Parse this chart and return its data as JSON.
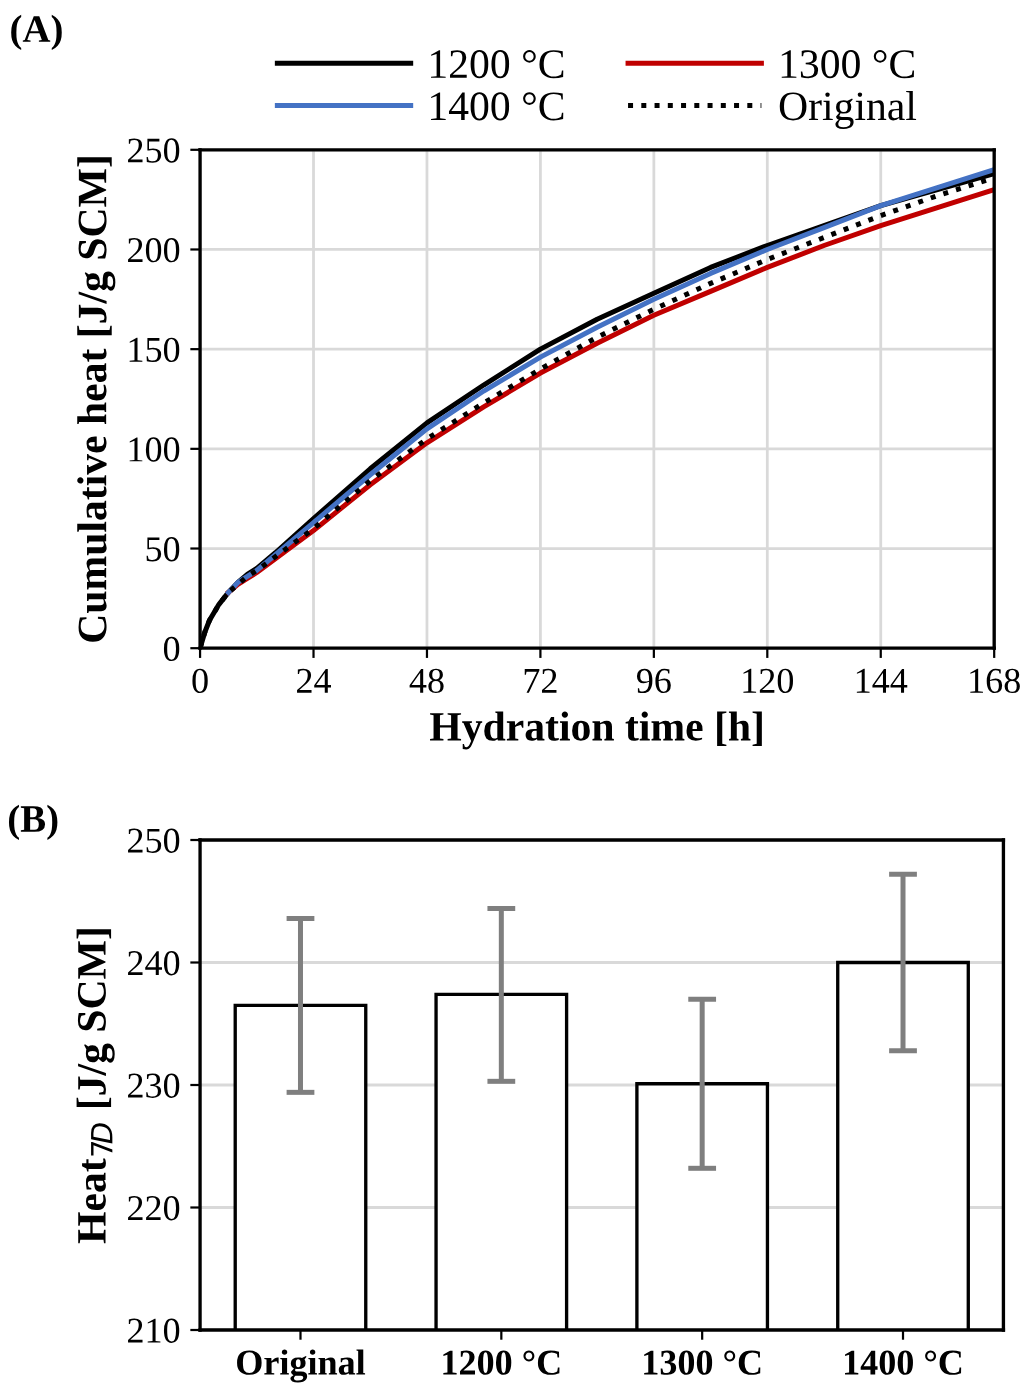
{
  "chart_data": [
    {
      "type": "line",
      "title": "(A)",
      "xlabel": "Hydration time [h]",
      "ylabel": "Cumulative heat [J/g SCM]",
      "xlim": [
        0,
        168
      ],
      "xticks": [
        0,
        24,
        48,
        72,
        96,
        120,
        144,
        168
      ],
      "ylim": [
        0,
        250
      ],
      "yticks": [
        0,
        50,
        100,
        150,
        200,
        250
      ],
      "grid": true,
      "legend": "top",
      "marker": "none",
      "x": [
        0,
        1,
        2,
        4,
        6,
        8,
        10,
        12,
        16,
        24,
        36,
        48,
        60,
        72,
        84,
        96,
        108,
        120,
        132,
        144,
        156,
        168
      ],
      "series": [
        {
          "name": "1200 °C",
          "color": "#000000",
          "line_style": "solid",
          "values": [
            0,
            8,
            14,
            22,
            28,
            33,
            37,
            40,
            48,
            65,
            90,
            113,
            132,
            150,
            165,
            178,
            191,
            202,
            212,
            222,
            230,
            238
          ]
        },
        {
          "name": "1300 °C",
          "color": "#c00000",
          "line_style": "solid",
          "x": [
            6,
            8,
            10,
            12,
            16,
            24,
            36,
            48,
            60,
            72,
            84,
            96,
            108,
            120,
            132,
            144,
            156,
            168
          ],
          "values": [
            28,
            32,
            35,
            38,
            45,
            59,
            82,
            103,
            121,
            138,
            153,
            167,
            179,
            191,
            202,
            212,
            221,
            230
          ]
        },
        {
          "name": "1400 °C",
          "color": "#4472c4",
          "line_style": "solid",
          "x": [
            6,
            8,
            10,
            12,
            16,
            24,
            36,
            48,
            60,
            72,
            84,
            96,
            108,
            120,
            132,
            144,
            156,
            168
          ],
          "values": [
            28,
            33,
            36,
            39,
            47,
            63,
            87,
            110,
            129,
            146,
            161,
            175,
            188,
            200,
            211,
            222,
            231,
            240
          ]
        },
        {
          "name": "Original",
          "color": "#000000",
          "line_style": "dotted",
          "values": [
            0,
            8,
            14,
            22,
            28,
            32,
            36,
            39,
            46,
            60,
            84,
            105,
            123,
            140,
            156,
            170,
            183,
            195,
            206,
            217,
            227,
            236
          ]
        }
      ]
    },
    {
      "type": "bar",
      "title": "(B)",
      "ylabel": "Heat$_{7D}$ [J/g SCM]",
      "categories": [
        "Original",
        "1200 °C",
        "1300 °C",
        "1400 °C"
      ],
      "ylim": [
        210,
        250
      ],
      "yticks": [
        210,
        220,
        230,
        240,
        250
      ],
      "grid": "y",
      "legend": false,
      "series": [
        {
          "color": "#ffffff",
          "values": [
            236.5,
            237.4,
            230.1,
            240.0
          ],
          "errors": [
            [
              229.4,
              243.6
            ],
            [
              230.3,
              244.4
            ],
            [
              223.2,
              237.0
            ],
            [
              232.8,
              247.2
            ]
          ]
        }
      ]
    }
  ]
}
